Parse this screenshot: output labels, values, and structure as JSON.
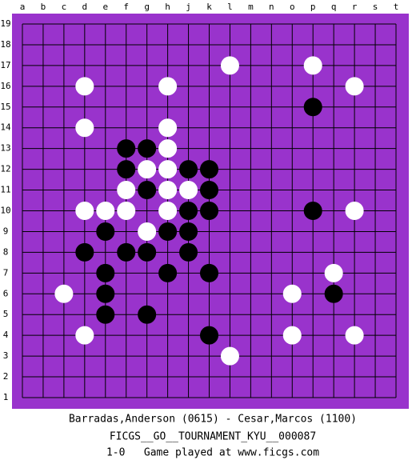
{
  "board": {
    "columns": [
      "a",
      "b",
      "c",
      "d",
      "e",
      "f",
      "g",
      "h",
      "j",
      "k",
      "l",
      "m",
      "n",
      "o",
      "p",
      "q",
      "r",
      "s",
      "t"
    ],
    "rows": [
      "19",
      "18",
      "17",
      "16",
      "15",
      "14",
      "13",
      "12",
      "11",
      "10",
      "9",
      "8",
      "7",
      "6",
      "5",
      "4",
      "3",
      "2",
      "1"
    ],
    "stones": [
      {
        "color": "white",
        "col": "l",
        "row": "17"
      },
      {
        "color": "white",
        "col": "p",
        "row": "17"
      },
      {
        "color": "white",
        "col": "d",
        "row": "16"
      },
      {
        "color": "white",
        "col": "h",
        "row": "16"
      },
      {
        "color": "white",
        "col": "r",
        "row": "16"
      },
      {
        "color": "black",
        "col": "p",
        "row": "15"
      },
      {
        "color": "white",
        "col": "d",
        "row": "14"
      },
      {
        "color": "white",
        "col": "h",
        "row": "14"
      },
      {
        "color": "black",
        "col": "f",
        "row": "13"
      },
      {
        "color": "black",
        "col": "g",
        "row": "13"
      },
      {
        "color": "white",
        "col": "h",
        "row": "13"
      },
      {
        "color": "black",
        "col": "f",
        "row": "12"
      },
      {
        "color": "white",
        "col": "g",
        "row": "12"
      },
      {
        "color": "white",
        "col": "h",
        "row": "12"
      },
      {
        "color": "black",
        "col": "j",
        "row": "12"
      },
      {
        "color": "black",
        "col": "k",
        "row": "12"
      },
      {
        "color": "white",
        "col": "f",
        "row": "11"
      },
      {
        "color": "black",
        "col": "g",
        "row": "11"
      },
      {
        "color": "white",
        "col": "h",
        "row": "11"
      },
      {
        "color": "white",
        "col": "j",
        "row": "11"
      },
      {
        "color": "black",
        "col": "k",
        "row": "11"
      },
      {
        "color": "white",
        "col": "d",
        "row": "10"
      },
      {
        "color": "white",
        "col": "e",
        "row": "10"
      },
      {
        "color": "white",
        "col": "f",
        "row": "10"
      },
      {
        "color": "white",
        "col": "h",
        "row": "10"
      },
      {
        "color": "black",
        "col": "j",
        "row": "10"
      },
      {
        "color": "black",
        "col": "k",
        "row": "10"
      },
      {
        "color": "black",
        "col": "p",
        "row": "10"
      },
      {
        "color": "white",
        "col": "r",
        "row": "10"
      },
      {
        "color": "black",
        "col": "e",
        "row": "9"
      },
      {
        "color": "white",
        "col": "g",
        "row": "9"
      },
      {
        "color": "black",
        "col": "h",
        "row": "9"
      },
      {
        "color": "black",
        "col": "j",
        "row": "9"
      },
      {
        "color": "black",
        "col": "d",
        "row": "8"
      },
      {
        "color": "black",
        "col": "f",
        "row": "8"
      },
      {
        "color": "black",
        "col": "g",
        "row": "8"
      },
      {
        "color": "black",
        "col": "j",
        "row": "8"
      },
      {
        "color": "black",
        "col": "e",
        "row": "7"
      },
      {
        "color": "black",
        "col": "h",
        "row": "7"
      },
      {
        "color": "black",
        "col": "k",
        "row": "7"
      },
      {
        "color": "white",
        "col": "q",
        "row": "7"
      },
      {
        "color": "white",
        "col": "c",
        "row": "6"
      },
      {
        "color": "black",
        "col": "e",
        "row": "6"
      },
      {
        "color": "white",
        "col": "o",
        "row": "6"
      },
      {
        "color": "black",
        "col": "q",
        "row": "6"
      },
      {
        "color": "black",
        "col": "e",
        "row": "5"
      },
      {
        "color": "black",
        "col": "g",
        "row": "5"
      },
      {
        "color": "white",
        "col": "d",
        "row": "4"
      },
      {
        "color": "black",
        "col": "k",
        "row": "4"
      },
      {
        "color": "white",
        "col": "o",
        "row": "4"
      },
      {
        "color": "white",
        "col": "r",
        "row": "4"
      },
      {
        "color": "white",
        "col": "l",
        "row": "3"
      }
    ]
  },
  "footer": {
    "players": "Barradas,Anderson (0615) - Cesar,Marcos (1100)",
    "tournament": "FICGS__GO__TOURNAMENT_KYU__000087",
    "result": "1-0   Game played at www.ficgs.com"
  }
}
